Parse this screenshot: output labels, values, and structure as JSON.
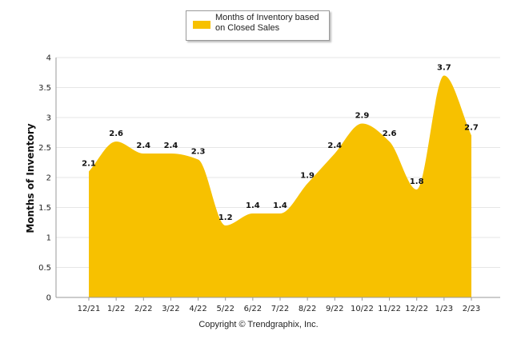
{
  "chart_data": {
    "type": "area",
    "title": "",
    "xlabel": "",
    "ylabel": "Months of Inventory",
    "categories": [
      "12/21",
      "1/22",
      "2/22",
      "3/22",
      "4/22",
      "5/22",
      "6/22",
      "7/22",
      "8/22",
      "9/22",
      "10/22",
      "11/22",
      "12/22",
      "1/23",
      "2/23"
    ],
    "series": [
      {
        "name": "Months of Inventory based on Closed Sales",
        "values": [
          2.1,
          2.6,
          2.4,
          2.4,
          2.3,
          1.2,
          1.4,
          1.4,
          1.9,
          2.4,
          2.9,
          2.6,
          1.8,
          3.7,
          2.7
        ],
        "color": "#F7C100"
      }
    ],
    "ylim": [
      0,
      4
    ],
    "yticks": [
      0,
      0.5,
      1,
      1.5,
      2,
      2.5,
      3,
      3.5,
      4
    ],
    "ytick_labels": [
      "0",
      "0.5",
      "1",
      "1.5",
      "2",
      "2.5",
      "3",
      "3.5",
      "4"
    ],
    "grid": true,
    "legend_position": "top-center"
  },
  "legend": {
    "label": "Months of Inventory based on Closed Sales"
  },
  "footer": {
    "copyright": "Copyright © Trendgraphix, Inc."
  }
}
